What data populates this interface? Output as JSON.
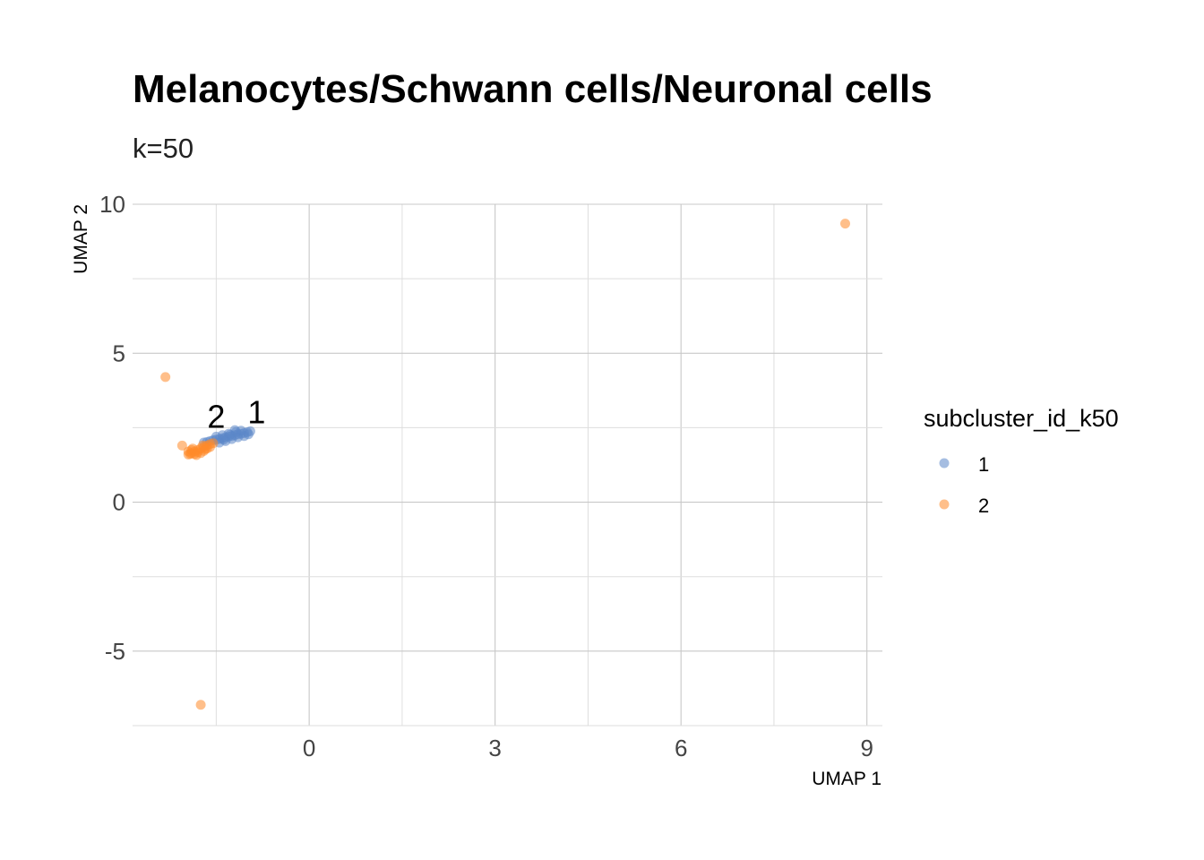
{
  "chart_data": {
    "type": "scatter",
    "title": "Melanocytes/Schwann cells/Neuronal cells",
    "subtitle": "k=50",
    "xlabel": "UMAP 1",
    "ylabel": "UMAP 2",
    "xlim": [
      -2.85,
      9.25
    ],
    "ylim": [
      -7.5,
      10.0
    ],
    "x_ticks": [
      0,
      3,
      6,
      9
    ],
    "x_tick_labels": [
      "0",
      "3",
      "6",
      "9"
    ],
    "y_ticks": [
      -5,
      0,
      5,
      10
    ],
    "y_tick_labels": [
      "-5",
      "0",
      "5",
      "10"
    ],
    "grid": true,
    "legend": {
      "title": "subcluster_id_k50",
      "position": "right",
      "entries": [
        {
          "label": "1",
          "color": "#5b87c8"
        },
        {
          "label": "2",
          "color": "#ff8a2a"
        }
      ]
    },
    "point_alpha": 0.55,
    "series": [
      {
        "name": "1",
        "color": "#5b87c8",
        "points": [
          [
            -1.0,
            2.35
          ],
          [
            -0.95,
            2.38
          ],
          [
            -1.05,
            2.32
          ],
          [
            -1.1,
            2.3
          ],
          [
            -1.15,
            2.28
          ],
          [
            -1.2,
            2.25
          ],
          [
            -1.25,
            2.22
          ],
          [
            -1.3,
            2.2
          ],
          [
            -1.35,
            2.18
          ],
          [
            -1.4,
            2.15
          ],
          [
            -1.45,
            2.12
          ],
          [
            -1.5,
            2.1
          ],
          [
            -1.55,
            2.08
          ],
          [
            -1.6,
            2.05
          ],
          [
            -1.65,
            2.02
          ],
          [
            -1.2,
            2.42
          ],
          [
            -1.3,
            2.3
          ],
          [
            -1.4,
            2.25
          ],
          [
            -1.15,
            2.18
          ],
          [
            -1.05,
            2.22
          ],
          [
            -1.25,
            2.12
          ],
          [
            -1.35,
            2.05
          ],
          [
            -1.1,
            2.4
          ],
          [
            -1.5,
            2.2
          ],
          [
            -1.45,
            2.0
          ],
          [
            -1.7,
            2.0
          ],
          [
            -0.98,
            2.28
          ],
          [
            -1.18,
            2.36
          ],
          [
            -1.28,
            2.26
          ],
          [
            -1.38,
            2.1
          ]
        ]
      },
      {
        "name": "2",
        "color": "#ff8a2a",
        "points": [
          [
            -2.32,
            4.2
          ],
          [
            -2.05,
            1.9
          ],
          [
            -1.75,
            -6.8
          ],
          [
            8.65,
            9.35
          ],
          [
            -1.95,
            1.6
          ],
          [
            -1.9,
            1.65
          ],
          [
            -1.85,
            1.7
          ],
          [
            -1.8,
            1.75
          ],
          [
            -1.75,
            1.8
          ],
          [
            -1.7,
            1.85
          ],
          [
            -1.65,
            1.9
          ],
          [
            -1.6,
            1.95
          ],
          [
            -1.55,
            1.98
          ],
          [
            -1.9,
            1.75
          ],
          [
            -1.85,
            1.62
          ],
          [
            -1.8,
            1.68
          ],
          [
            -1.95,
            1.7
          ],
          [
            -1.7,
            1.72
          ],
          [
            -1.75,
            1.65
          ],
          [
            -1.6,
            1.85
          ],
          [
            -1.65,
            1.8
          ],
          [
            -1.88,
            1.8
          ],
          [
            -1.72,
            1.9
          ],
          [
            -1.92,
            1.62
          ],
          [
            -1.82,
            1.58
          ],
          [
            -1.68,
            1.78
          ]
        ]
      }
    ],
    "annotations": [
      {
        "text": "2",
        "x": -1.5,
        "y": 2.5
      },
      {
        "text": "1",
        "x": -0.85,
        "y": 2.65
      }
    ]
  }
}
